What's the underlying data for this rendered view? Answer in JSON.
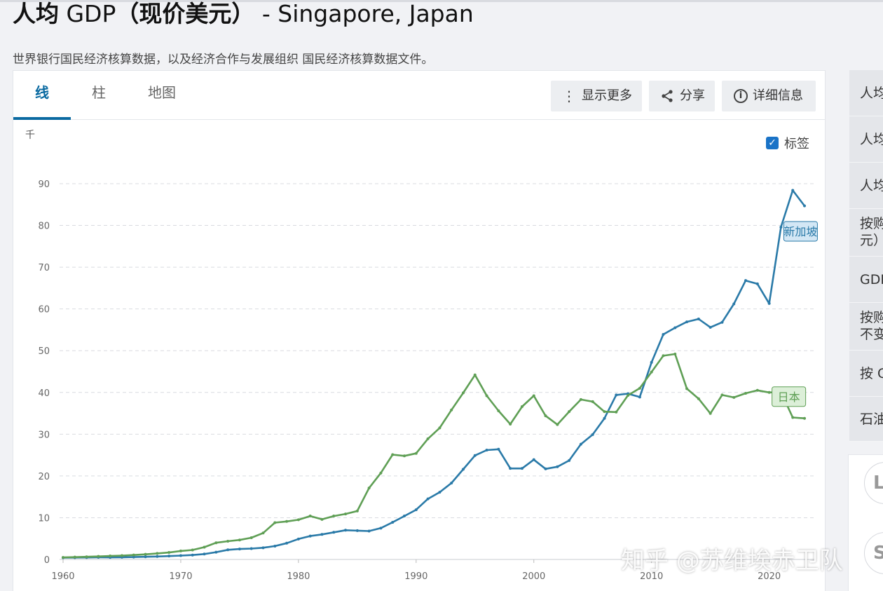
{
  "header": {
    "title_cn": "人均",
    "title_gdp": " GDP",
    "title_cn2": "（现价美元）",
    "title_countries": " - Singapore, Japan",
    "subtitle": "世界银行国民经济核算数据，以及经济合作与发展组织 国民经济核算数据文件。"
  },
  "tabs": [
    {
      "label": "线"
    },
    {
      "label": "柱"
    },
    {
      "label": "地图"
    }
  ],
  "toolbar": {
    "more_label": "显示更多",
    "share_label": "分享",
    "details_label": "详细信息"
  },
  "labels_toggle": {
    "label": "标签",
    "checked": true
  },
  "sidebar": {
    "items": [
      {
        "label": "人均"
      },
      {
        "label": "人均"
      },
      {
        "label": "人均"
      },
      {
        "label": "按购",
        "label2": "元）"
      },
      {
        "label": "GDP"
      },
      {
        "label": "按购",
        "label2": "不变"
      },
      {
        "label": "按 G"
      },
      {
        "label": "石油"
      }
    ],
    "circles": [
      {
        "label": "L"
      },
      {
        "label": "S"
      }
    ]
  },
  "watermark": "知乎 @苏维埃赤卫队",
  "colors": {
    "singapore": "#2a7aa8",
    "japan": "#5f9f55",
    "accent": "#0a6aa1"
  },
  "chart_data": {
    "type": "line",
    "unit_label": "千",
    "ylim": [
      0,
      90
    ],
    "yticks": [
      0,
      10,
      20,
      30,
      40,
      50,
      60,
      70,
      80,
      90
    ],
    "xlim": [
      1960,
      2023
    ],
    "xticks": [
      1960,
      1970,
      1980,
      1990,
      2000,
      2010,
      2020
    ],
    "grid": true,
    "x": [
      1960,
      1961,
      1962,
      1963,
      1964,
      1965,
      1966,
      1967,
      1968,
      1969,
      1970,
      1971,
      1972,
      1973,
      1974,
      1975,
      1976,
      1977,
      1978,
      1979,
      1980,
      1981,
      1982,
      1983,
      1984,
      1985,
      1986,
      1987,
      1988,
      1989,
      1990,
      1991,
      1992,
      1993,
      1994,
      1995,
      1996,
      1997,
      1998,
      1999,
      2000,
      2001,
      2002,
      2003,
      2004,
      2005,
      2006,
      2007,
      2008,
      2009,
      2010,
      2011,
      2012,
      2013,
      2014,
      2015,
      2016,
      2017,
      2018,
      2019,
      2020,
      2021,
      2022,
      2023
    ],
    "series": [
      {
        "name": "新加坡",
        "values": [
          0.43,
          0.45,
          0.47,
          0.51,
          0.49,
          0.52,
          0.57,
          0.63,
          0.71,
          0.81,
          0.93,
          1.05,
          1.3,
          1.75,
          2.3,
          2.5,
          2.6,
          2.8,
          3.2,
          3.9,
          4.9,
          5.6,
          6.0,
          6.5,
          7.0,
          6.9,
          6.8,
          7.5,
          8.9,
          10.4,
          11.9,
          14.5,
          16.1,
          18.3,
          21.6,
          24.9,
          26.2,
          26.4,
          21.8,
          21.8,
          23.9,
          21.7,
          22.2,
          23.7,
          27.6,
          29.9,
          33.8,
          39.4,
          39.7,
          38.9,
          47.2,
          53.9,
          55.5,
          56.9,
          57.6,
          55.6,
          56.8,
          61.2,
          66.8,
          66.0,
          61.3,
          79.6,
          88.4,
          84.7
        ],
        "label": "新加坡"
      },
      {
        "name": "日本",
        "values": [
          0.48,
          0.56,
          0.64,
          0.73,
          0.84,
          0.92,
          1.06,
          1.23,
          1.45,
          1.67,
          2.04,
          2.27,
          2.94,
          3.99,
          4.36,
          4.66,
          5.2,
          6.33,
          8.82,
          9.1,
          9.5,
          10.4,
          9.6,
          10.4,
          10.9,
          11.6,
          17.1,
          20.7,
          25.1,
          24.8,
          25.4,
          28.9,
          31.5,
          35.8,
          39.9,
          44.2,
          39.2,
          35.6,
          32.4,
          36.6,
          39.2,
          34.4,
          32.3,
          35.4,
          38.3,
          37.8,
          35.4,
          35.3,
          39.3,
          41.0,
          44.9,
          48.8,
          49.2,
          40.9,
          38.5,
          34.96,
          39.4,
          38.8,
          39.8,
          40.5,
          40.0,
          40.1,
          34.0,
          33.8
        ],
        "label": "日本"
      }
    ]
  }
}
